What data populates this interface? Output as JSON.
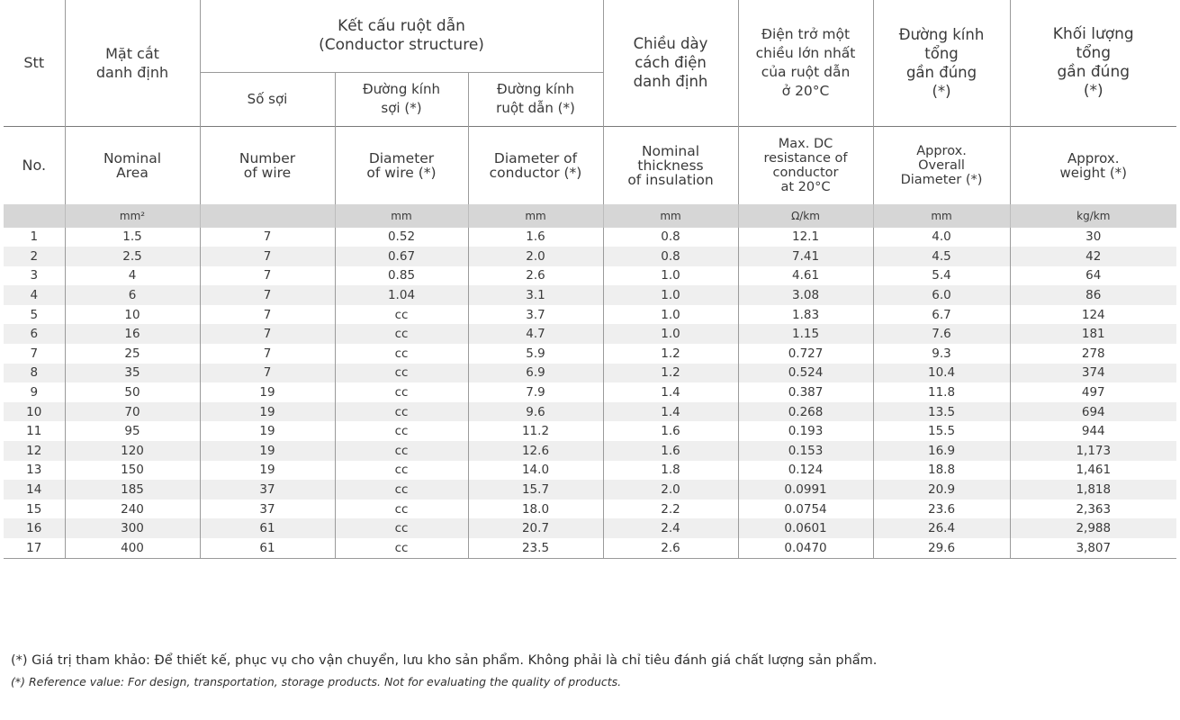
{
  "header_vi": {
    "stt": "Stt",
    "area": "Mặt cắt\ndanh định",
    "structure": "Kết cấu ruột dẫn\n(Conductor structure)",
    "num_wire": "Số sợi",
    "dia_wire": "Đường kính\nsợi (*)",
    "dia_conductor": "Đường kính\nruột dẫn (*)",
    "thickness": "Chiều dày\ncách điện\ndanh định",
    "resistance": "Điện trở một\nchiều lớn nhất\ncủa ruột dẫn\nở 20°C",
    "overall_dia": "Đường kính\ntổng\ngần đúng\n(*)",
    "weight": "Khối lượng\ntổng\ngần đúng\n(*)"
  },
  "header_en": {
    "no": "No.",
    "area": "Nominal\nArea",
    "num_wire": "Number\nof wire",
    "dia_wire": "Diameter\nof wire (*)",
    "dia_conductor": "Diameter of\nconductor (*)",
    "thickness": "Nominal\nthickness\nof insulation",
    "resistance": "Max. DC\nresistance of\nconductor\nat 20°C",
    "overall_dia": "Approx.\nOverall\nDiameter (*)",
    "weight": "Approx.\nweight (*)"
  },
  "units": {
    "no": "",
    "area": "mm²",
    "num_wire": "",
    "dia_wire": "mm",
    "dia_conductor": "mm",
    "thickness": "mm",
    "resistance": "Ω/km",
    "overall_dia": "mm",
    "weight": "kg/km"
  },
  "rows": [
    [
      "1",
      "1.5",
      "7",
      "0.52",
      "1.6",
      "0.8",
      "12.1",
      "4.0",
      "30"
    ],
    [
      "2",
      "2.5",
      "7",
      "0.67",
      "2.0",
      "0.8",
      "7.41",
      "4.5",
      "42"
    ],
    [
      "3",
      "4",
      "7",
      "0.85",
      "2.6",
      "1.0",
      "4.61",
      "5.4",
      "64"
    ],
    [
      "4",
      "6",
      "7",
      "1.04",
      "3.1",
      "1.0",
      "3.08",
      "6.0",
      "86"
    ],
    [
      "5",
      "10",
      "7",
      "cc",
      "3.7",
      "1.0",
      "1.83",
      "6.7",
      "124"
    ],
    [
      "6",
      "16",
      "7",
      "cc",
      "4.7",
      "1.0",
      "1.15",
      "7.6",
      "181"
    ],
    [
      "7",
      "25",
      "7",
      "cc",
      "5.9",
      "1.2",
      "0.727",
      "9.3",
      "278"
    ],
    [
      "8",
      "35",
      "7",
      "cc",
      "6.9",
      "1.2",
      "0.524",
      "10.4",
      "374"
    ],
    [
      "9",
      "50",
      "19",
      "cc",
      "7.9",
      "1.4",
      "0.387",
      "11.8",
      "497"
    ],
    [
      "10",
      "70",
      "19",
      "cc",
      "9.6",
      "1.4",
      "0.268",
      "13.5",
      "694"
    ],
    [
      "11",
      "95",
      "19",
      "cc",
      "11.2",
      "1.6",
      "0.193",
      "15.5",
      "944"
    ],
    [
      "12",
      "120",
      "19",
      "cc",
      "12.6",
      "1.6",
      "0.153",
      "16.9",
      "1,173"
    ],
    [
      "13",
      "150",
      "19",
      "cc",
      "14.0",
      "1.8",
      "0.124",
      "18.8",
      "1,461"
    ],
    [
      "14",
      "185",
      "37",
      "cc",
      "15.7",
      "2.0",
      "0.0991",
      "20.9",
      "1,818"
    ],
    [
      "15",
      "240",
      "37",
      "cc",
      "18.0",
      "2.2",
      "0.0754",
      "23.6",
      "2,363"
    ],
    [
      "16",
      "300",
      "61",
      "cc",
      "20.7",
      "2.4",
      "0.0601",
      "26.4",
      "2,988"
    ],
    [
      "17",
      "400",
      "61",
      "cc",
      "23.5",
      "2.6",
      "0.0470",
      "29.6",
      "3,807"
    ]
  ],
  "notes": {
    "vi": "(*) Giá trị tham khảo: Để thiết kế, phục vụ cho vận chuyển, lưu kho sản phẩm. Không phải là chỉ tiêu đánh giá chất lượng sản phẩm.",
    "en": "(*) Reference value: For design, transportation, storage products. Not for evaluating the quality of products."
  }
}
